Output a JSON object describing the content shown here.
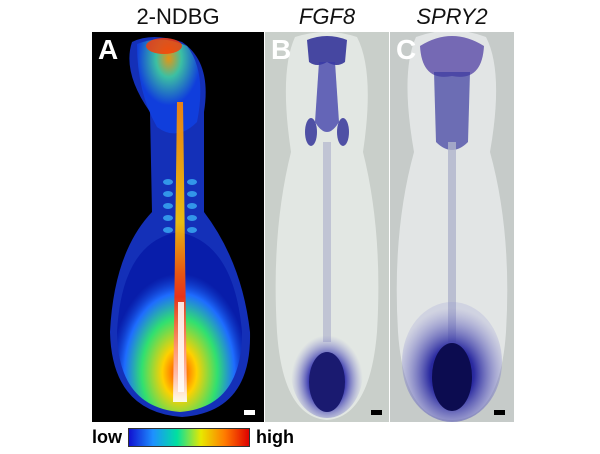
{
  "panels": [
    {
      "letter": "A",
      "title": "2-NDBG",
      "title_italic": false
    },
    {
      "letter": "B",
      "title": "FGF8",
      "title_italic": true
    },
    {
      "letter": "C",
      "title": "SPRY2",
      "title_italic": true
    }
  ],
  "legend": {
    "low_label": "low",
    "high_label": "high",
    "gradient_colors": [
      "#1010d0",
      "#1e90ff",
      "#00e0a0",
      "#e8e800",
      "#ff7a00",
      "#e00000"
    ]
  },
  "colors": {
    "panel_a_background": "#000000",
    "panel_b_background": "#c9cfca",
    "panel_c_background": "#c6cbc9",
    "stain": "#2a2a95",
    "letter_panel_a": "#ffffff",
    "letter_panel_bc": "#ffffff"
  }
}
